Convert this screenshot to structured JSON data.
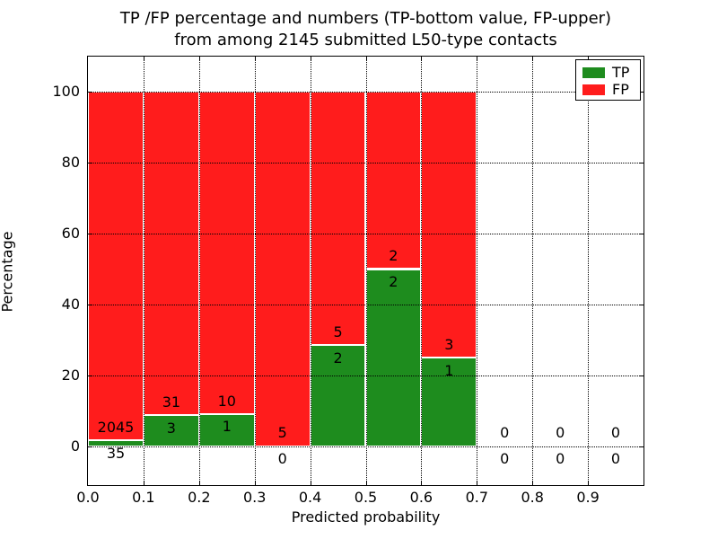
{
  "title": {
    "line1": "TP /FP percentage and numbers (TP-bottom value, FP-upper)",
    "line2": "from among 2145 submitted L50-type contacts"
  },
  "axes": {
    "x_label": "Predicted probability",
    "y_label": "Percentage",
    "x_tick_labels": [
      "0.0",
      "0.1",
      "0.2",
      "0.3",
      "0.4",
      "0.5",
      "0.6",
      "0.7",
      "0.8",
      "0.9"
    ],
    "x_tick_values": [
      0.0,
      0.1,
      0.2,
      0.3,
      0.4,
      0.5,
      0.6,
      0.7,
      0.8,
      0.9
    ],
    "y_tick_labels": [
      "0",
      "20",
      "40",
      "60",
      "80",
      "100"
    ],
    "y_tick_values": [
      0,
      20,
      40,
      60,
      80,
      100
    ],
    "grid": "dotted"
  },
  "legend": {
    "position": "upper-right",
    "entries": [
      {
        "label": "TP",
        "color": "#1e8c1e"
      },
      {
        "label": "FP",
        "color": "#ff1c1c"
      }
    ]
  },
  "colors": {
    "tp": "#1e8c1e",
    "fp": "#ff1c1c",
    "text": "#000000",
    "grid": "#000000",
    "background": "#ffffff"
  },
  "chart_data": {
    "type": "bar",
    "stacked": true,
    "normalized": "percent of bin total",
    "title": "TP /FP percentage and numbers (TP-bottom value, FP-upper) from among 2145 submitted L50-type contacts",
    "xlabel": "Predicted probability",
    "ylabel": "Percentage",
    "xlim": [
      0.0,
      1.0
    ],
    "ylim": [
      -11,
      110
    ],
    "bin_width": 0.1,
    "total_contacts": 2145,
    "legend_position": "upper right",
    "grid": true,
    "categories": [
      "0.0-0.1",
      "0.1-0.2",
      "0.2-0.3",
      "0.3-0.4",
      "0.4-0.5",
      "0.5-0.6",
      "0.6-0.7",
      "0.7-0.8",
      "0.8-0.9",
      "0.9-1.0"
    ],
    "series": [
      {
        "name": "TP",
        "color": "#1e8c1e",
        "counts": [
          35,
          3,
          1,
          0,
          2,
          2,
          1,
          0,
          0,
          0
        ]
      },
      {
        "name": "FP",
        "color": "#ff1c1c",
        "counts": [
          2045,
          31,
          10,
          5,
          5,
          2,
          3,
          0,
          0,
          0
        ]
      }
    ],
    "bins": [
      {
        "x_start": 0.0,
        "tp": 35,
        "fp": 2045,
        "tp_pct": 1.68,
        "has_bar": true
      },
      {
        "x_start": 0.1,
        "tp": 3,
        "fp": 31,
        "tp_pct": 8.82,
        "has_bar": true
      },
      {
        "x_start": 0.2,
        "tp": 1,
        "fp": 10,
        "tp_pct": 9.09,
        "has_bar": true
      },
      {
        "x_start": 0.3,
        "tp": 0,
        "fp": 5,
        "tp_pct": 0.0,
        "has_bar": true
      },
      {
        "x_start": 0.4,
        "tp": 2,
        "fp": 5,
        "tp_pct": 28.57,
        "has_bar": true
      },
      {
        "x_start": 0.5,
        "tp": 2,
        "fp": 2,
        "tp_pct": 50.0,
        "has_bar": true
      },
      {
        "x_start": 0.6,
        "tp": 1,
        "fp": 3,
        "tp_pct": 25.0,
        "has_bar": true
      },
      {
        "x_start": 0.7,
        "tp": 0,
        "fp": 0,
        "tp_pct": 0.0,
        "has_bar": false
      },
      {
        "x_start": 0.8,
        "tp": 0,
        "fp": 0,
        "tp_pct": 0.0,
        "has_bar": false
      },
      {
        "x_start": 0.9,
        "tp": 0,
        "fp": 0,
        "tp_pct": 0.0,
        "has_bar": false
      }
    ]
  }
}
